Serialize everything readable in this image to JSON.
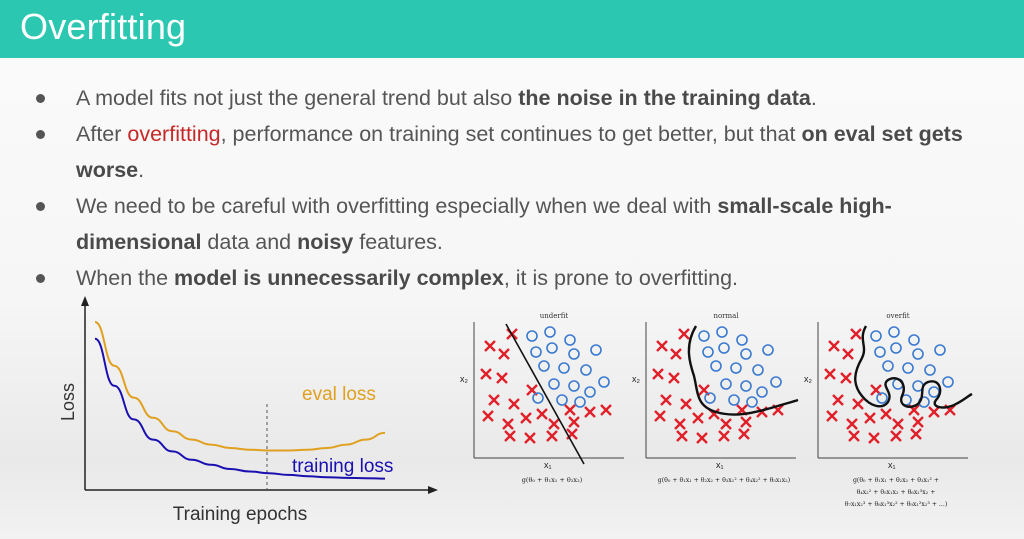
{
  "slide": {
    "title": "Overfitting",
    "colors": {
      "header": "#2bc7b0",
      "text": "#555555",
      "highlight": "#c62828",
      "eval": "#e0a020",
      "training": "#1a10b0",
      "cross": "#e0202a",
      "circle": "#3a7ad0"
    }
  },
  "bullets": [
    {
      "parts": [
        "A model fits not just the general trend but also ",
        "the noise in the training data",
        "."
      ]
    },
    {
      "parts": [
        "After ",
        "overfitting",
        ", performance on training set continues to get better, but that ",
        "on eval set gets worse",
        "."
      ]
    },
    {
      "parts": [
        "We need to be careful with overfitting especially when we deal with ",
        "small-scale high-dimensional",
        " data and ",
        "noisy",
        " features."
      ]
    },
    {
      "parts": [
        "When the ",
        "model is unnecessarily complex",
        ", it is prone to overfitting."
      ]
    }
  ],
  "chart_data": {
    "type": "line",
    "xlabel": "Training epochs",
    "ylabel": "Loss",
    "series": [
      {
        "name": "eval loss",
        "values": [
          1.0,
          0.74,
          0.55,
          0.43,
          0.35,
          0.3,
          0.27,
          0.25,
          0.24,
          0.235,
          0.235,
          0.24,
          0.25,
          0.27,
          0.3,
          0.34
        ]
      },
      {
        "name": "training loss",
        "values": [
          0.9,
          0.62,
          0.42,
          0.3,
          0.23,
          0.18,
          0.15,
          0.125,
          0.11,
          0.1,
          0.09,
          0.082,
          0.076,
          0.072,
          0.07,
          0.068
        ]
      }
    ],
    "annotations": [
      "early stop marker (dashed vertical line)"
    ]
  },
  "fit_panels": [
    {
      "title": "underfit",
      "xlabel": "x₁",
      "ylabel": "x₂",
      "formula": [
        "g(θ₀ + θ₁x₁ + θ₂x₂)"
      ]
    },
    {
      "title": "normal",
      "xlabel": "x₁",
      "ylabel": "x₂",
      "formula": [
        "g(θ₀ + θ₁x₁ + θ₂x₂ + θ₃x₁² + θ₄x₂² + θ₅x₁x₂)"
      ]
    },
    {
      "title": "overfit",
      "xlabel": "x₁",
      "ylabel": "x₂",
      "formula": [
        "g(θ₀ + θ₁x₁ + θ₂x₂ + θ₃x₁² +",
        "θ₄x₂² + θ₅x₁x₂ + θ₆x₁³x₂ +",
        "θ₇x₁x₂³ + θ₈x₁³x₂² + θ₉x₁²x₂³ + ...)"
      ]
    }
  ]
}
